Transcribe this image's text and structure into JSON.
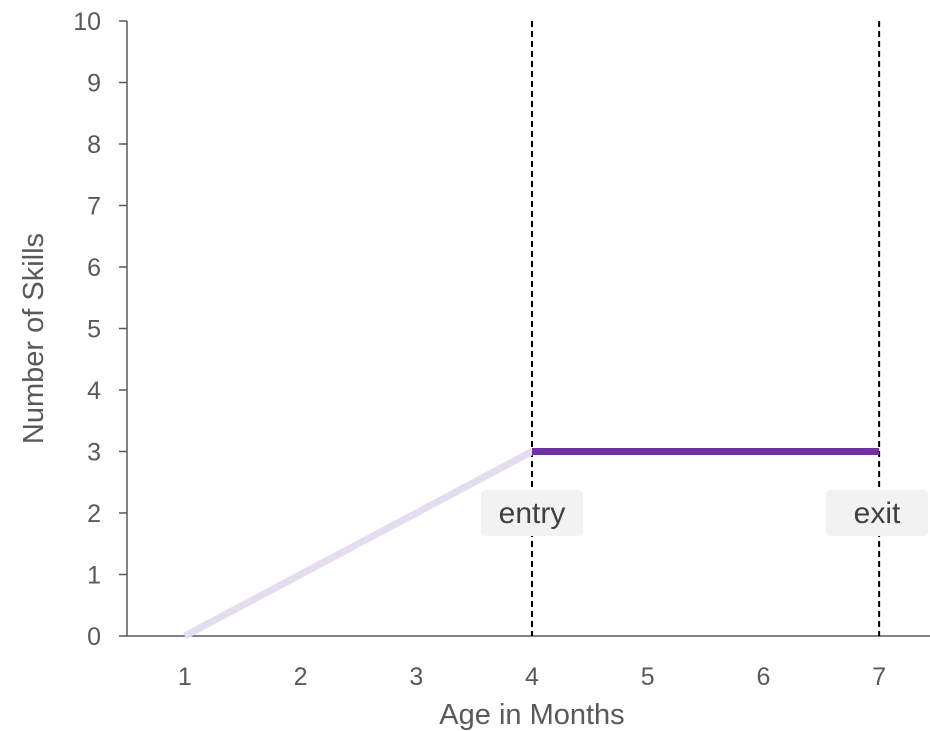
{
  "chart_data": {
    "type": "line",
    "xlabel": "Age  in Months",
    "ylabel": "Number of Skills",
    "xlim": [
      0.5,
      7.5
    ],
    "ylim": [
      0,
      10
    ],
    "x_ticks": [
      1,
      2,
      3,
      4,
      5,
      6,
      7
    ],
    "y_ticks": [
      0,
      1,
      2,
      3,
      4,
      5,
      6,
      7,
      8,
      9,
      10
    ],
    "grid": false,
    "series": [
      {
        "color": "#e6dcf0",
        "points": [
          [
            1,
            0
          ],
          [
            4,
            3
          ]
        ]
      },
      {
        "color": "#7030a0",
        "points": [
          [
            4,
            3
          ],
          [
            7,
            3
          ]
        ]
      }
    ],
    "markers": [
      {
        "x": 4,
        "label": "entry"
      },
      {
        "x": 7,
        "label": "exit"
      }
    ]
  }
}
